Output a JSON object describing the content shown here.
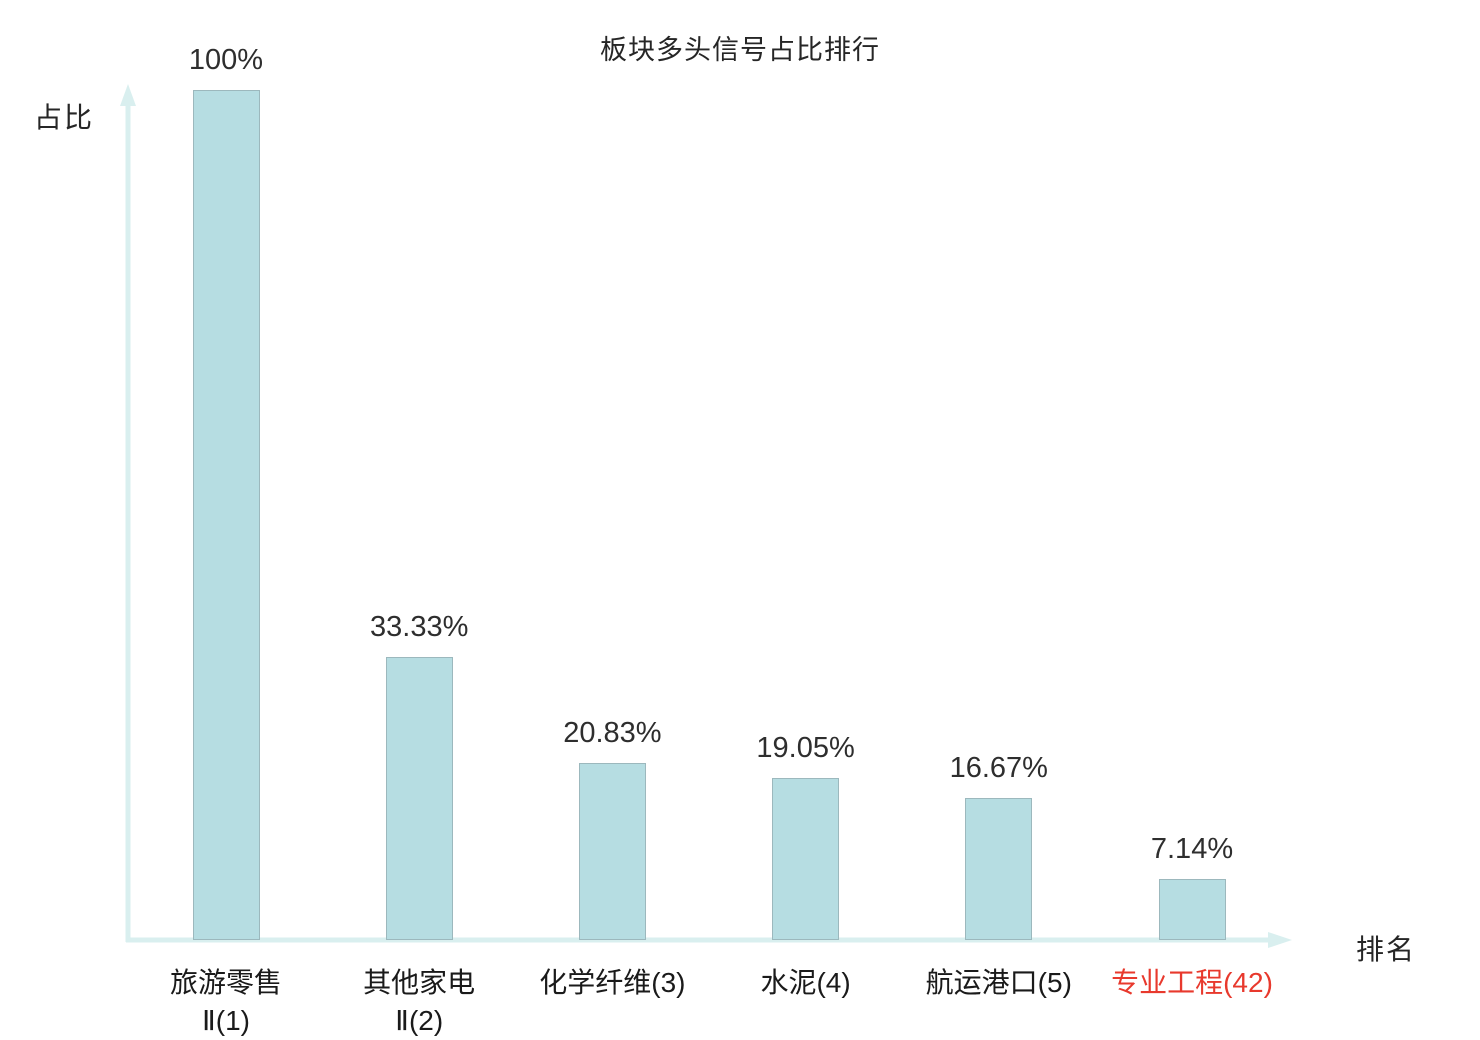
{
  "chart_data": {
    "type": "bar",
    "title": "板块多头信号占比排行",
    "xlabel": "排名",
    "ylabel": "占比",
    "ylim": [
      0,
      100
    ],
    "categories": [
      "旅游零售Ⅱ(1)",
      "其他家电Ⅱ(2)",
      "化学纤维(3)",
      "水泥(4)",
      "航运港口(5)",
      "专业工程(42)"
    ],
    "category_lines": [
      [
        "旅游零售",
        "Ⅱ(1)"
      ],
      [
        "其他家电",
        "Ⅱ(2)"
      ],
      [
        "化学纤维(3)"
      ],
      [
        "水泥(4)"
      ],
      [
        "航运港口(5)"
      ],
      [
        "专业工程(42)"
      ]
    ],
    "values": [
      100,
      33.33,
      20.83,
      19.05,
      16.67,
      7.14
    ],
    "value_labels": [
      "100%",
      "33.33%",
      "20.83%",
      "19.05%",
      "16.67%",
      "7.14%"
    ],
    "highlight_index": 5,
    "legend": [],
    "grid": false,
    "colors": {
      "bar_fill": "#b6dde2",
      "bar_border": "#9cb8bd",
      "axis": "#d9efef",
      "text": "#262626",
      "highlight": "#e8392d"
    }
  }
}
